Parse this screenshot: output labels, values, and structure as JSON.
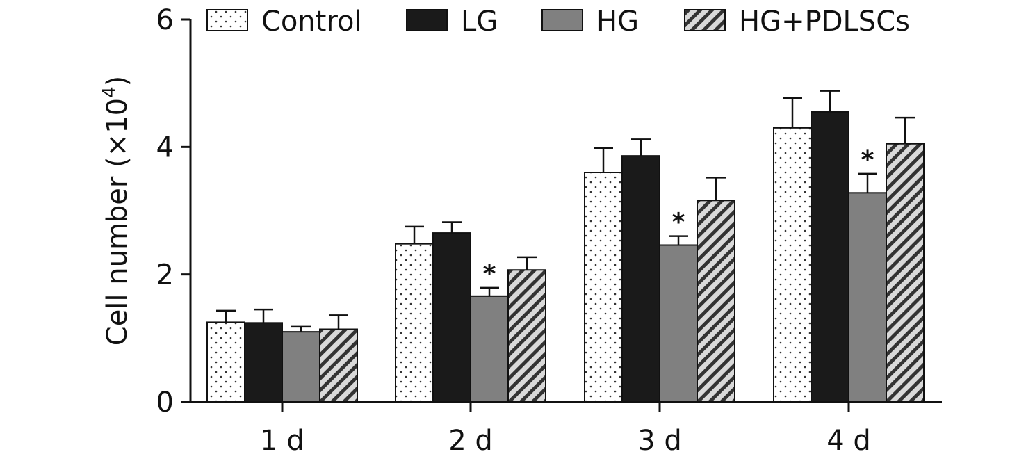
{
  "chart_data": {
    "type": "bar",
    "title": "",
    "xlabel": "",
    "ylabel": "Cell number (×10",
    "ylabel_sup": "4",
    "ylabel_close": ")",
    "categories": [
      "1 d",
      "2 d",
      "3 d",
      "4 d"
    ],
    "ylim": [
      0,
      6
    ],
    "yticks": [
      0,
      2,
      4,
      6
    ],
    "series": [
      {
        "name": "Control",
        "fill": "dots",
        "values": [
          1.25,
          2.48,
          3.6,
          4.3
        ],
        "errors": [
          0.18,
          0.27,
          0.38,
          0.47
        ]
      },
      {
        "name": "LG",
        "fill": "#1a1a1a",
        "values": [
          1.24,
          2.65,
          3.86,
          4.55
        ],
        "errors": [
          0.21,
          0.17,
          0.26,
          0.33
        ]
      },
      {
        "name": "HG",
        "fill": "#808080",
        "values": [
          1.1,
          1.66,
          2.46,
          3.28
        ],
        "errors": [
          0.08,
          0.13,
          0.14,
          0.3
        ],
        "significance": [
          "",
          "*",
          "*",
          "*"
        ]
      },
      {
        "name": "HG+PDLSCs",
        "fill": "hatch",
        "values": [
          1.14,
          2.07,
          3.16,
          4.05
        ],
        "errors": [
          0.22,
          0.2,
          0.36,
          0.41
        ]
      }
    ],
    "legend_position": "top",
    "grid": false
  }
}
